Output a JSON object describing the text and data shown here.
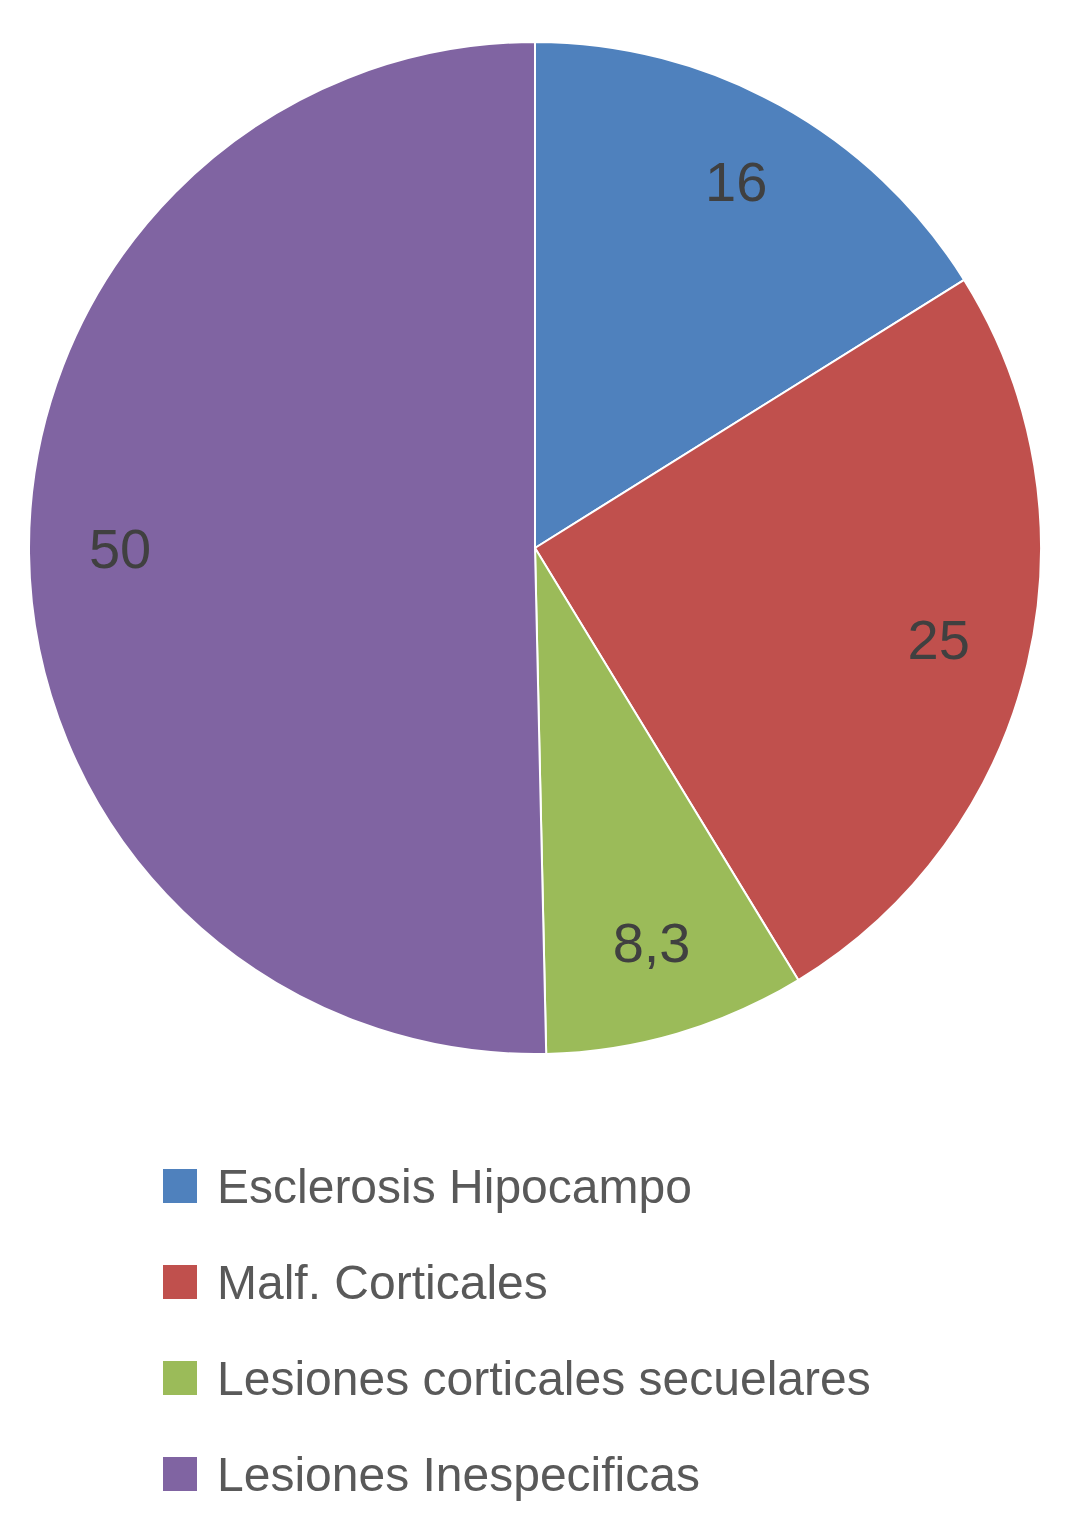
{
  "chart_data": {
    "type": "pie",
    "categories": [
      "Esclerosis Hipocampo",
      "Malf. Corticales",
      "Lesiones corticales secuelares",
      "Lesiones Inespecificas"
    ],
    "values": [
      16,
      25,
      8.3,
      50
    ],
    "value_labels": [
      "16",
      "25",
      "8,3",
      "50"
    ],
    "colors": [
      "#4f81bd",
      "#c0504d",
      "#9bbb59",
      "#8064a2"
    ],
    "legend": "bottom"
  }
}
